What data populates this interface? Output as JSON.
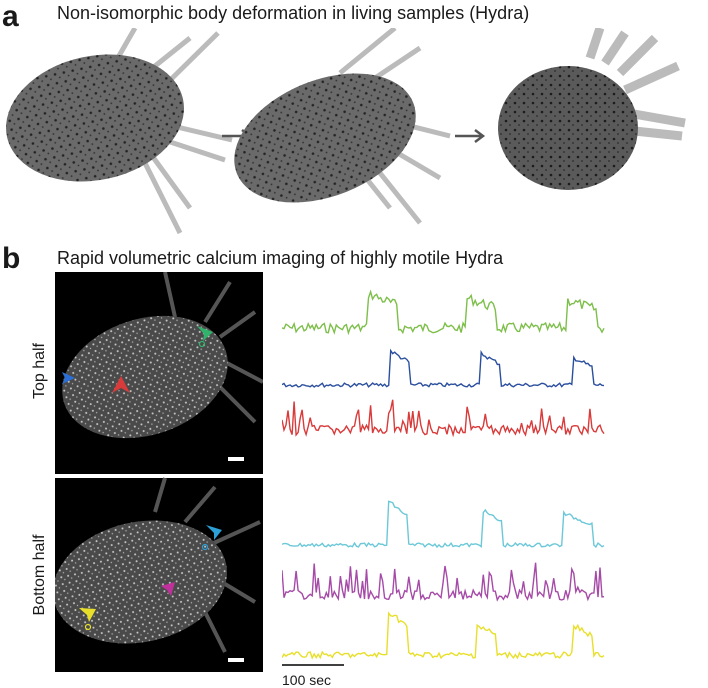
{
  "panel_a": {
    "letter": "a",
    "title": "Non-isomorphic body deformation in living samples (Hydra)",
    "arrow_icon": "right-arrow-icon"
  },
  "panel_b": {
    "letter": "b",
    "title": "Rapid volumetric calcium imaging of highly motile Hydra",
    "rows": [
      {
        "label": "Top half",
        "traces": [
          "#7dbf4a",
          "#2b4f9e",
          "#d93a3a"
        ]
      },
      {
        "label": "Bottom half",
        "traces": [
          "#6cc8d8",
          "#a64aa8",
          "#e8df2a"
        ]
      }
    ],
    "scale_bar_label": "100 sec"
  },
  "colors": {
    "green": "#7dbf4a",
    "blue": "#2b4f9e",
    "red": "#d93a3a",
    "cyan": "#6cc8d8",
    "magenta": "#a64aa8",
    "yellow": "#e8df2a"
  }
}
